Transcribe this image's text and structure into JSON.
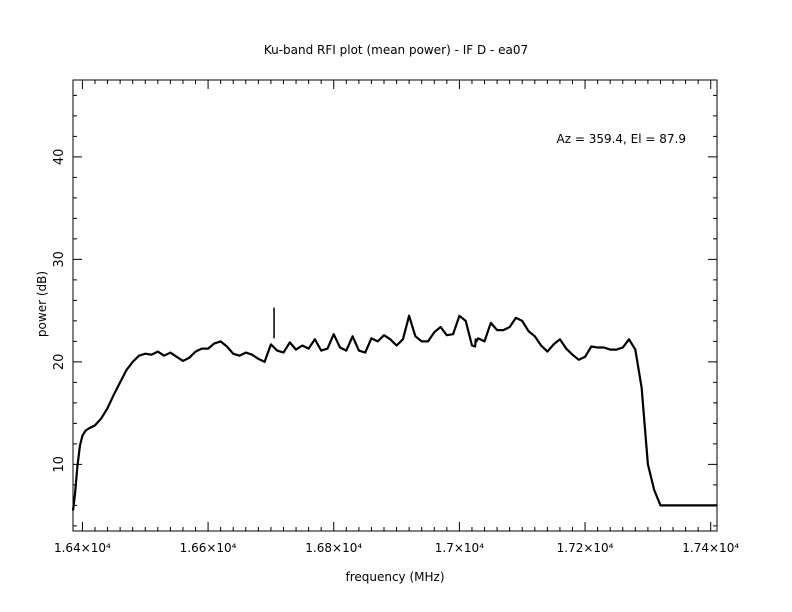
{
  "chart_data": {
    "type": "line",
    "title": "Ku-band RFI plot (mean power) - IF D - ea07",
    "xlabel": "frequency (MHz)",
    "ylabel": "power (dB)",
    "annotation": "Az = 359.4, El = 87.9",
    "xlim": [
      16385,
      17410
    ],
    "ylim": [
      3.5,
      47.5
    ],
    "grid": false,
    "legend": "none",
    "line_color": "#000000",
    "x_ticks": [
      {
        "value": 16400,
        "label": "1.64×10⁴"
      },
      {
        "value": 16600,
        "label": "1.66×10⁴"
      },
      {
        "value": 16800,
        "label": "1.68×10⁴"
      },
      {
        "value": 17000,
        "label": "1.7×10⁴"
      },
      {
        "value": 17200,
        "label": "1.72×10⁴"
      },
      {
        "value": 17400,
        "label": "1.74×10⁴"
      }
    ],
    "y_ticks": [
      {
        "value": 10,
        "label": "10"
      },
      {
        "value": 20,
        "label": "20"
      },
      {
        "value": 30,
        "label": "30"
      },
      {
        "value": 40,
        "label": "40"
      }
    ],
    "series": [
      {
        "x": [
          16385,
          16388,
          16392,
          16396,
          16400,
          16405,
          16410,
          16420,
          16430,
          16440,
          16450,
          16460,
          16470,
          16480,
          16490,
          16500,
          16510,
          16520,
          16530,
          16540,
          16550,
          16560,
          16570,
          16580,
          16590,
          16600,
          16610,
          16620,
          16630,
          16640,
          16650,
          16660,
          16670,
          16680,
          16690,
          16700,
          16710,
          16720,
          16730,
          16740,
          16750,
          16760,
          16770,
          16780,
          16790,
          16800,
          16810,
          16820,
          16830,
          16840,
          16850,
          16860,
          16870,
          16880,
          16890,
          16900,
          16910,
          16920,
          16930,
          16940,
          16950,
          16960,
          16970,
          16980,
          16990,
          17000,
          17010,
          17020,
          17025,
          17026,
          17027,
          17030,
          17040,
          17050,
          17060,
          17070,
          17080,
          17090,
          17100,
          17110,
          17120,
          17130,
          17140,
          17150,
          17160,
          17170,
          17180,
          17190,
          17200,
          17210,
          17220,
          17230,
          17240,
          17250,
          17260,
          17270,
          17280,
          17290,
          17300,
          17310,
          17320,
          17330,
          17340,
          17350,
          17360,
          17370,
          17380,
          17385,
          17390,
          17395,
          17400,
          17405,
          17410
        ],
        "y": [
          5.5,
          7.0,
          9.8,
          11.8,
          12.8,
          13.3,
          13.5,
          13.8,
          14.5,
          15.5,
          16.8,
          18.0,
          19.2,
          20.0,
          20.6,
          20.8,
          20.7,
          21.0,
          20.6,
          20.9,
          20.5,
          20.1,
          20.4,
          21.0,
          21.3,
          21.3,
          21.8,
          22.0,
          21.5,
          20.8,
          20.6,
          20.9,
          20.7,
          20.3,
          20.0,
          21.7,
          21.1,
          20.9,
          21.9,
          21.2,
          21.6,
          21.3,
          22.2,
          21.1,
          21.3,
          22.7,
          21.4,
          21.1,
          22.5,
          21.1,
          20.9,
          22.3,
          22.0,
          22.6,
          22.2,
          21.6,
          22.2,
          24.5,
          22.5,
          22.0,
          22.0,
          22.9,
          23.4,
          22.6,
          22.7,
          24.5,
          24.0,
          21.6,
          21.5,
          22.2,
          22.0,
          22.3,
          22.0,
          23.8,
          23.1,
          23.1,
          23.4,
          24.3,
          24.0,
          23.0,
          22.5,
          21.6,
          21.0,
          21.7,
          22.2,
          21.3,
          20.7,
          20.2,
          20.5,
          21.5,
          21.4,
          21.4,
          21.2,
          21.2,
          21.4,
          22.2,
          21.2,
          17.5,
          10.0,
          7.5,
          6.0,
          6.0,
          6.0,
          6.0,
          6.0,
          6.0,
          6.0,
          6.0,
          6.0,
          6.0,
          6.0,
          6.0,
          6.0
        ],
        "spikes": [
          {
            "x": 16705,
            "y": 25.3
          }
        ]
      }
    ]
  }
}
